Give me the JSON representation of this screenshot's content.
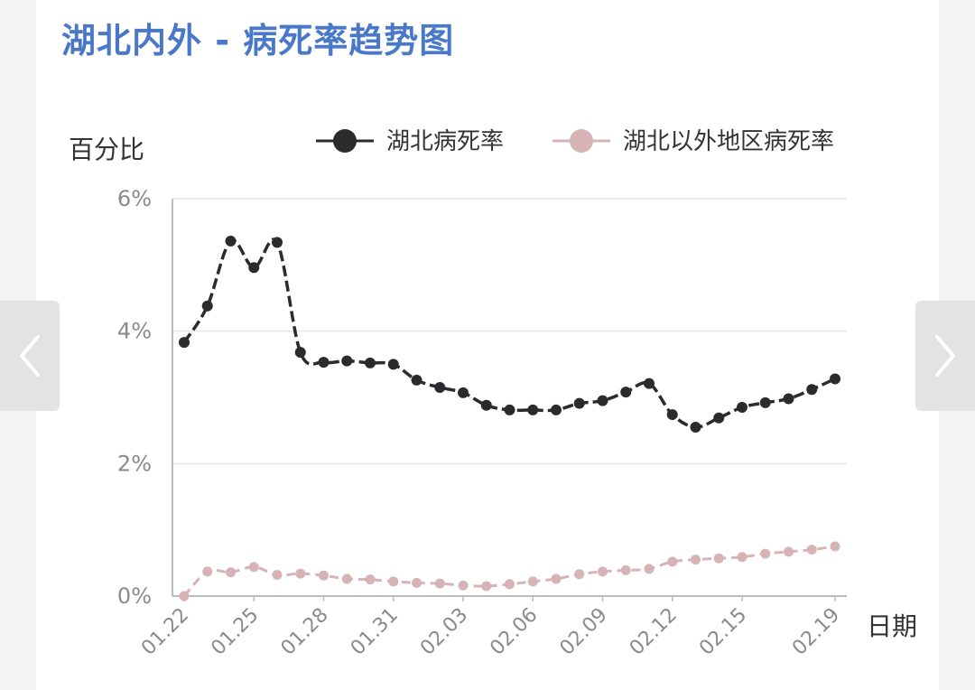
{
  "title": "湖北内外 - 病死率趋势图",
  "nav": {
    "prev_icon": "chevron-left-icon",
    "next_icon": "chevron-right-icon"
  },
  "colors": {
    "hubei": "#2b2b2e",
    "outside": "#d6b4b5",
    "title": "#4a78c8",
    "grid": "#e6e6e6",
    "axis": "#bbbbbb"
  },
  "chart_data": {
    "type": "line",
    "ylabel": "百分比",
    "xlabel": "日期",
    "ylim": [
      0,
      6
    ],
    "yticks": [
      0,
      2,
      4,
      6
    ],
    "ytick_labels": [
      "0%",
      "2%",
      "4%",
      "6%"
    ],
    "grid": true,
    "legend_position": "top-right",
    "x": [
      "01.22",
      "01.23",
      "01.24",
      "01.25",
      "01.26",
      "01.27",
      "01.28",
      "01.29",
      "01.30",
      "01.31",
      "02.01",
      "02.02",
      "02.03",
      "02.04",
      "02.05",
      "02.06",
      "02.07",
      "02.08",
      "02.09",
      "02.10",
      "02.11",
      "02.12",
      "02.13",
      "02.14",
      "02.15",
      "02.16",
      "02.17",
      "02.18",
      "02.19"
    ],
    "xtick_labels": [
      "01.22",
      "01.25",
      "01.28",
      "01.31",
      "02.03",
      "02.06",
      "02.09",
      "02.12",
      "02.15",
      "02.19"
    ],
    "xtick_indices": [
      0,
      3,
      6,
      9,
      12,
      15,
      18,
      21,
      24,
      28
    ],
    "series": [
      {
        "name": "湖北病死率",
        "values": [
          3.83,
          4.38,
          5.36,
          4.96,
          5.34,
          3.68,
          3.53,
          3.55,
          3.52,
          3.5,
          3.26,
          3.15,
          3.07,
          2.88,
          2.81,
          2.81,
          2.81,
          2.91,
          2.95,
          3.08,
          3.21,
          2.74,
          2.55,
          2.69,
          2.85,
          2.92,
          2.98,
          3.12,
          3.28
        ]
      },
      {
        "name": "湖北以外地区病死率",
        "values": [
          0.0,
          0.37,
          0.36,
          0.44,
          0.32,
          0.34,
          0.31,
          0.26,
          0.25,
          0.22,
          0.2,
          0.19,
          0.16,
          0.15,
          0.18,
          0.22,
          0.26,
          0.33,
          0.37,
          0.39,
          0.41,
          0.52,
          0.55,
          0.57,
          0.59,
          0.64,
          0.67,
          0.7,
          0.75
        ]
      }
    ]
  }
}
